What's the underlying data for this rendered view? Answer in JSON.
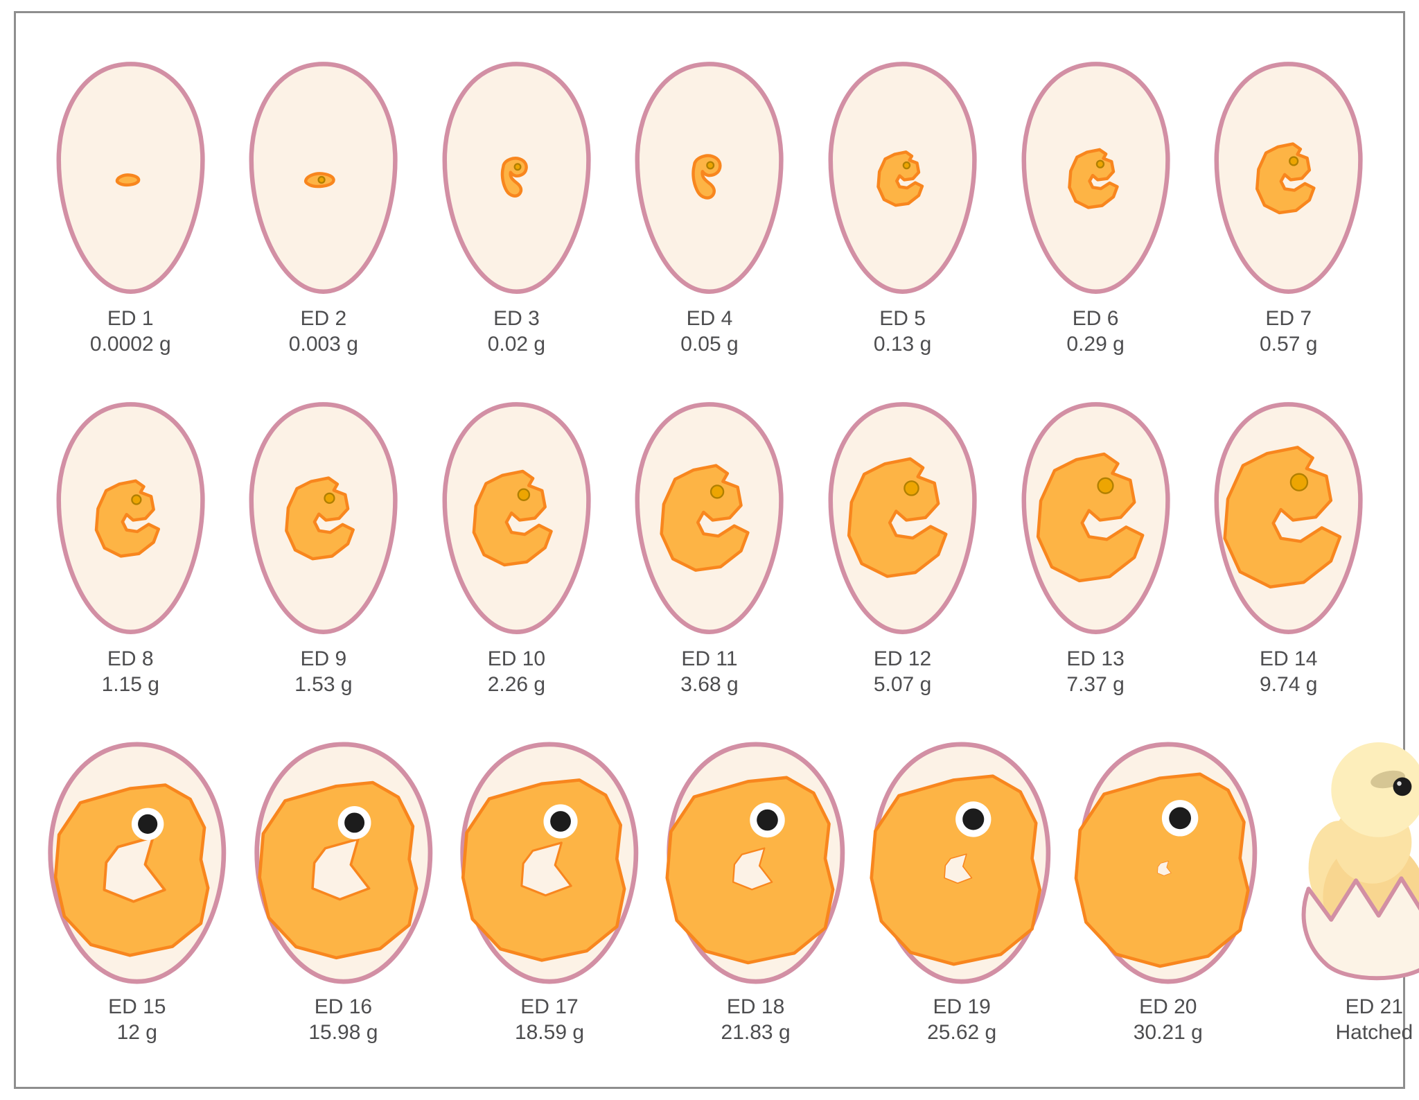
{
  "colors": {
    "background": "#ffffff",
    "frame_border": "#8e8e8e",
    "egg_outline": "#d28fa4",
    "egg_fill": "#fcf2e6",
    "embryo_fill": "#fdb445",
    "embryo_stroke": "#f8861e",
    "eye_gold": "#eda502",
    "eye_gold_ring": "#b07f00",
    "eye_black": "#1c1c1c",
    "eye_ring_white": "#ffffff",
    "label_text": "#4d4d4f",
    "chick_fluff_light": "#fdeebb",
    "chick_fluff": "#fbe2a4",
    "chick_body": "#f8d690",
    "chick_beak": "#f59d38",
    "chick_beak_dark": "#e2862c",
    "shell_fill": "#fcf3e6"
  },
  "stages": [
    {
      "day_label": "ED 1",
      "weight_label": "0.0002 g",
      "shape": "speck",
      "scale": 34,
      "eye": "none",
      "egg": "narrow"
    },
    {
      "day_label": "ED 2",
      "weight_label": "0.003 g",
      "shape": "speck",
      "scale": 44,
      "eye": "gold",
      "egg": "narrow"
    },
    {
      "day_label": "ED 3",
      "weight_label": "0.02 g",
      "shape": "comma",
      "scale": 50,
      "eye": "gold",
      "egg": "narrow"
    },
    {
      "day_label": "ED 4",
      "weight_label": "0.05 g",
      "shape": "comma",
      "scale": 56,
      "eye": "gold",
      "egg": "narrow"
    },
    {
      "day_label": "ED 5",
      "weight_label": "0.13 g",
      "shape": "c",
      "scale": 58,
      "eye": "gold",
      "egg": "narrow"
    },
    {
      "day_label": "ED 6",
      "weight_label": "0.29 g",
      "shape": "c",
      "scale": 63,
      "eye": "gold",
      "egg": "narrow"
    },
    {
      "day_label": "ED 7",
      "weight_label": "0.57 g",
      "shape": "c",
      "scale": 75,
      "eye": "gold",
      "egg": "narrow"
    },
    {
      "day_label": "ED 8",
      "weight_label": "1.15 g",
      "shape": "c",
      "scale": 82,
      "eye": "gold",
      "egg": "narrow"
    },
    {
      "day_label": "ED 9",
      "weight_label": "1.53 g",
      "shape": "c",
      "scale": 88,
      "eye": "gold",
      "egg": "narrow"
    },
    {
      "day_label": "ED 10",
      "weight_label": "2.26 g",
      "shape": "c",
      "scale": 102,
      "eye": "gold",
      "egg": "narrow"
    },
    {
      "day_label": "ED 11",
      "weight_label": "3.68 g",
      "shape": "c",
      "scale": 114,
      "eye": "gold",
      "egg": "narrow"
    },
    {
      "day_label": "ED 12",
      "weight_label": "5.07 g",
      "shape": "c",
      "scale": 128,
      "eye": "gold",
      "egg": "narrow"
    },
    {
      "day_label": "ED 13",
      "weight_label": "7.37 g",
      "shape": "c",
      "scale": 138,
      "eye": "gold",
      "egg": "narrow"
    },
    {
      "day_label": "ED 14",
      "weight_label": "9.74 g",
      "shape": "c",
      "scale": 152,
      "eye": "gold",
      "egg": "narrow"
    },
    {
      "day_label": "ED 15",
      "weight_label": "12 g",
      "shape": "full",
      "scale": 172,
      "eye": "black",
      "notch": 1.1,
      "egg": "wide"
    },
    {
      "day_label": "ED 16",
      "weight_label": "15.98 g",
      "shape": "full",
      "scale": 177,
      "eye": "black",
      "notch": 1.0,
      "egg": "wide"
    },
    {
      "day_label": "ED 17",
      "weight_label": "18.59 g",
      "shape": "full",
      "scale": 182,
      "eye": "black",
      "notch": 0.85,
      "egg": "wide"
    },
    {
      "day_label": "ED 18",
      "weight_label": "21.83 g",
      "shape": "full",
      "scale": 187,
      "eye": "black",
      "notch": 0.65,
      "egg": "wide"
    },
    {
      "day_label": "ED 19",
      "weight_label": "25.62 g",
      "shape": "full",
      "scale": 190,
      "eye": "black",
      "notch": 0.45,
      "egg": "wide"
    },
    {
      "day_label": "ED 20",
      "weight_label": "30.21 g",
      "shape": "full",
      "scale": 194,
      "eye": "black",
      "notch": 0.22,
      "egg": "wide"
    },
    {
      "day_label": "ED 21",
      "weight_label": "Hatched",
      "shape": "hatched",
      "scale": 0,
      "eye": "none",
      "egg": "hatched"
    }
  ]
}
